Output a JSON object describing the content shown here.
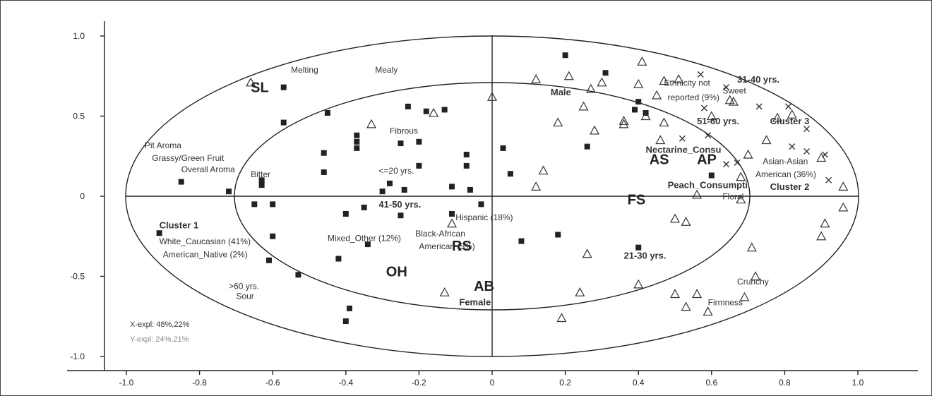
{
  "chart_data": {
    "type": "scatter",
    "title": "",
    "xlabel": "",
    "ylabel": "",
    "xlim": [
      -1.0,
      1.0
    ],
    "ylim": [
      -1.0,
      1.0
    ],
    "x_ticks": [
      "-1.0",
      "-0.8",
      "-0.6",
      "-0.4",
      "-0.2",
      "0",
      "0.2",
      "0.4",
      "0.6",
      "0.8",
      "1.0"
    ],
    "y_ticks": [
      "1.0",
      "0.5",
      "0",
      "-0.5",
      "-1.0"
    ],
    "y_tick_values": [
      1.0,
      0.5,
      0,
      -0.5,
      -1.0
    ],
    "ellipses": [
      "outer",
      "inner"
    ],
    "explained": [
      "X-expl: 48%,22%",
      "Y-expl: 24%,21%"
    ],
    "explained_colors": [
      "#333333",
      "#888888"
    ],
    "marker_colors": {
      "square": "#222222",
      "triangle": "#333333",
      "cross": "#333333"
    },
    "series": [
      {
        "marker": "square",
        "points": [
          [
            0.2,
            0.88
          ],
          [
            0.31,
            0.77
          ],
          [
            -0.57,
            0.68
          ],
          [
            -0.45,
            0.52
          ],
          [
            -0.57,
            0.46
          ],
          [
            -0.23,
            0.56
          ],
          [
            -0.18,
            0.53
          ],
          [
            -0.13,
            0.54
          ],
          [
            -0.37,
            0.38
          ],
          [
            -0.37,
            0.34
          ],
          [
            -0.37,
            0.3
          ],
          [
            -0.46,
            0.27
          ],
          [
            -0.25,
            0.33
          ],
          [
            -0.2,
            0.34
          ],
          [
            -0.07,
            0.26
          ],
          [
            -0.07,
            0.19
          ],
          [
            -0.2,
            0.19
          ],
          [
            -0.46,
            0.15
          ],
          [
            -0.85,
            0.09
          ],
          [
            -0.72,
            0.03
          ],
          [
            -0.63,
            0.1
          ],
          [
            -0.63,
            0.07
          ],
          [
            -0.28,
            0.08
          ],
          [
            -0.3,
            0.03
          ],
          [
            -0.24,
            0.04
          ],
          [
            -0.11,
            0.06
          ],
          [
            -0.06,
            0.04
          ],
          [
            0.03,
            0.3
          ],
          [
            0.05,
            0.14
          ],
          [
            -0.65,
            -0.05
          ],
          [
            -0.6,
            -0.05
          ],
          [
            -0.35,
            -0.07
          ],
          [
            -0.4,
            -0.11
          ],
          [
            -0.25,
            -0.12
          ],
          [
            -0.11,
            -0.11
          ],
          [
            -0.03,
            -0.05
          ],
          [
            -0.91,
            -0.23
          ],
          [
            -0.6,
            -0.25
          ],
          [
            -0.34,
            -0.3
          ],
          [
            0.08,
            -0.28
          ],
          [
            0.18,
            -0.24
          ],
          [
            0.4,
            -0.32
          ],
          [
            -0.61,
            -0.4
          ],
          [
            -0.53,
            -0.49
          ],
          [
            -0.42,
            -0.39
          ],
          [
            -0.39,
            -0.7
          ],
          [
            -0.4,
            -0.78
          ],
          [
            0.26,
            0.31
          ],
          [
            0.39,
            0.54
          ],
          [
            0.4,
            0.59
          ],
          [
            0.42,
            0.52
          ],
          [
            0.6,
            0.13
          ]
        ]
      },
      {
        "marker": "triangle",
        "points": [
          [
            -0.66,
            0.71
          ],
          [
            -0.16,
            0.52
          ],
          [
            -0.33,
            0.45
          ],
          [
            0.0,
            0.62
          ],
          [
            0.12,
            0.73
          ],
          [
            0.21,
            0.75
          ],
          [
            0.27,
            0.67
          ],
          [
            0.3,
            0.71
          ],
          [
            0.41,
            0.84
          ],
          [
            0.4,
            0.7
          ],
          [
            0.25,
            0.56
          ],
          [
            0.18,
            0.46
          ],
          [
            0.28,
            0.41
          ],
          [
            0.36,
            0.47
          ],
          [
            0.36,
            0.45
          ],
          [
            0.42,
            0.5
          ],
          [
            0.45,
            0.63
          ],
          [
            0.47,
            0.72
          ],
          [
            0.51,
            0.73
          ],
          [
            0.46,
            0.35
          ],
          [
            0.47,
            0.46
          ],
          [
            0.6,
            0.5
          ],
          [
            0.65,
            0.6
          ],
          [
            0.66,
            0.59
          ],
          [
            0.7,
            0.26
          ],
          [
            0.68,
            0.12
          ],
          [
            0.75,
            0.35
          ],
          [
            0.78,
            0.49
          ],
          [
            0.82,
            0.51
          ],
          [
            0.14,
            0.16
          ],
          [
            0.12,
            0.06
          ],
          [
            0.56,
            0.01
          ],
          [
            0.68,
            -0.02
          ],
          [
            0.9,
            0.24
          ],
          [
            0.96,
            0.06
          ],
          [
            0.96,
            -0.07
          ],
          [
            0.91,
            -0.17
          ],
          [
            0.9,
            -0.25
          ],
          [
            0.5,
            -0.14
          ],
          [
            0.53,
            -0.16
          ],
          [
            0.71,
            -0.32
          ],
          [
            0.26,
            -0.36
          ],
          [
            0.72,
            -0.5
          ],
          [
            0.4,
            -0.55
          ],
          [
            0.5,
            -0.61
          ],
          [
            0.53,
            -0.69
          ],
          [
            0.56,
            -0.61
          ],
          [
            0.59,
            -0.72
          ],
          [
            0.69,
            -0.63
          ],
          [
            0.24,
            -0.6
          ],
          [
            0.19,
            -0.76
          ],
          [
            -0.13,
            -0.6
          ],
          [
            -0.11,
            -0.17
          ]
        ]
      },
      {
        "marker": "cross",
        "points": [
          [
            0.57,
            0.76
          ],
          [
            0.64,
            0.68
          ],
          [
            0.73,
            0.56
          ],
          [
            0.81,
            0.56
          ],
          [
            0.58,
            0.55
          ],
          [
            0.59,
            0.38
          ],
          [
            0.52,
            0.36
          ],
          [
            0.64,
            0.2
          ],
          [
            0.67,
            0.21
          ],
          [
            0.82,
            0.31
          ],
          [
            0.86,
            0.42
          ],
          [
            0.86,
            0.28
          ],
          [
            0.91,
            0.26
          ],
          [
            0.92,
            0.1
          ]
        ]
      }
    ],
    "annotations": [
      {
        "text": "SL",
        "x": -0.66,
        "y": 0.65,
        "style": "big"
      },
      {
        "text": "Melting",
        "x": -0.55,
        "y": 0.77,
        "style": "label"
      },
      {
        "text": "Mealy",
        "x": -0.32,
        "y": 0.77,
        "style": "label"
      },
      {
        "text": "Male",
        "x": 0.16,
        "y": 0.63,
        "style": "bold"
      },
      {
        "text": "Ethnicity not",
        "x": 0.47,
        "y": 0.69,
        "style": "label-gray"
      },
      {
        "text": "reported (9%)",
        "x": 0.48,
        "y": 0.6,
        "style": "label-gray"
      },
      {
        "text": "Sweet",
        "x": 0.63,
        "y": 0.64,
        "style": "label-gray"
      },
      {
        "text": "31-40 yrs.",
        "x": 0.67,
        "y": 0.71,
        "style": "bold"
      },
      {
        "text": "51-60 yrs.",
        "x": 0.56,
        "y": 0.45,
        "style": "bold"
      },
      {
        "text": "Cluster 3",
        "x": 0.76,
        "y": 0.45,
        "style": "bold"
      },
      {
        "text": "Fibrous",
        "x": -0.28,
        "y": 0.39,
        "style": "label"
      },
      {
        "text": "Pit Aroma",
        "x": -0.95,
        "y": 0.3,
        "style": "label"
      },
      {
        "text": "Grassy/Green Fruit",
        "x": -0.93,
        "y": 0.22,
        "style": "label"
      },
      {
        "text": "Overall Aroma",
        "x": -0.85,
        "y": 0.15,
        "style": "label"
      },
      {
        "text": "Bitter",
        "x": -0.66,
        "y": 0.12,
        "style": "label"
      },
      {
        "text": "<=20 yrs.",
        "x": -0.31,
        "y": 0.14,
        "style": "label"
      },
      {
        "text": "Nectarine_Consu",
        "x": 0.42,
        "y": 0.27,
        "style": "bold-gray"
      },
      {
        "text": "AS",
        "x": 0.43,
        "y": 0.2,
        "style": "big"
      },
      {
        "text": "AP",
        "x": 0.56,
        "y": 0.2,
        "style": "big"
      },
      {
        "text": "Asian-Asian",
        "x": 0.74,
        "y": 0.2,
        "style": "label-gray"
      },
      {
        "text": "American (36%)",
        "x": 0.72,
        "y": 0.12,
        "style": "label-gray"
      },
      {
        "text": "Cluster 2",
        "x": 0.76,
        "y": 0.04,
        "style": "bold"
      },
      {
        "text": "Peach_Consumpti",
        "x": 0.48,
        "y": 0.05,
        "style": "bold-gray"
      },
      {
        "text": "Floral",
        "x": 0.63,
        "y": -0.02,
        "style": "label"
      },
      {
        "text": "FS",
        "x": 0.37,
        "y": -0.05,
        "style": "big"
      },
      {
        "text": "41-50 yrs.",
        "x": -0.31,
        "y": -0.07,
        "style": "bold"
      },
      {
        "text": "Hispanic (18%)",
        "x": -0.1,
        "y": -0.15,
        "style": "label-gray"
      },
      {
        "text": "Cluster 1",
        "x": -0.91,
        "y": -0.2,
        "style": "bold"
      },
      {
        "text": "White_Caucasian (41%)",
        "x": -0.91,
        "y": -0.3,
        "style": "label-gray"
      },
      {
        "text": "American_Native (2%)",
        "x": -0.9,
        "y": -0.38,
        "style": "label-gray"
      },
      {
        "text": "Mixed_Other (12%)",
        "x": -0.45,
        "y": -0.28,
        "style": "label-gray"
      },
      {
        "text": "Black-African",
        "x": -0.21,
        "y": -0.25,
        "style": "label-gray"
      },
      {
        "text": "American (5%)",
        "x": -0.2,
        "y": -0.33,
        "style": "label-gray"
      },
      {
        "text": "RS",
        "x": -0.11,
        "y": -0.34,
        "style": "big"
      },
      {
        "text": "21-30 yrs.",
        "x": 0.36,
        "y": -0.39,
        "style": "bold"
      },
      {
        "text": "OH",
        "x": -0.29,
        "y": -0.5,
        "style": "big"
      },
      {
        "text": "AB",
        "x": -0.05,
        "y": -0.59,
        "style": "big"
      },
      {
        "text": "Female",
        "x": -0.09,
        "y": -0.68,
        "style": "bold"
      },
      {
        "text": ">60 yrs.",
        "x": -0.72,
        "y": -0.58,
        "style": "label"
      },
      {
        "text": "Sour",
        "x": -0.7,
        "y": -0.64,
        "style": "label"
      },
      {
        "text": "Crunchy",
        "x": 0.67,
        "y": -0.55,
        "style": "label"
      },
      {
        "text": "Firmness",
        "x": 0.59,
        "y": -0.68,
        "style": "label"
      }
    ]
  }
}
